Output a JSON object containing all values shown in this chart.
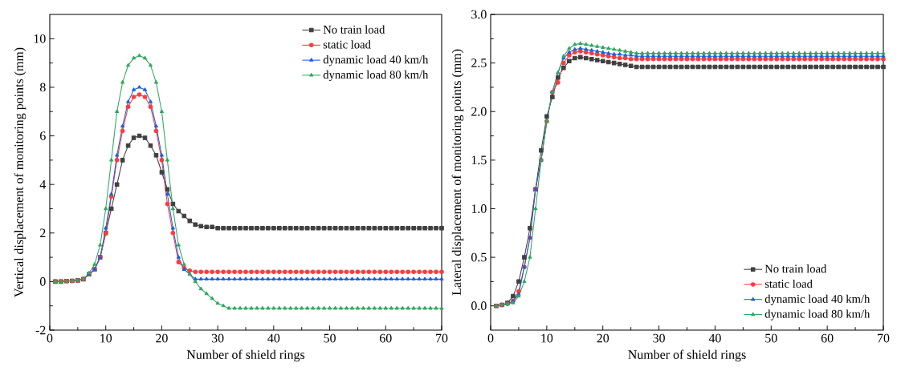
{
  "chart_data": [
    {
      "type": "line",
      "xlabel": "Number of shield rings",
      "ylabel": "Vertical displacement of monitoring points (mm)",
      "xlim": [
        0,
        70
      ],
      "ylim": [
        -2,
        11
      ],
      "xticks": [
        0,
        10,
        20,
        30,
        40,
        50,
        60,
        70
      ],
      "yticks": [
        -2,
        0,
        2,
        4,
        6,
        8,
        10
      ],
      "grid": false,
      "legend": "top right",
      "line_style": "solid",
      "x": [
        1,
        2,
        3,
        4,
        5,
        6,
        7,
        8,
        9,
        10,
        11,
        12,
        13,
        14,
        15,
        16,
        17,
        18,
        19,
        20,
        21,
        22,
        23,
        24,
        25,
        26,
        27,
        28,
        29,
        30,
        31,
        32,
        33,
        34,
        35,
        36,
        37,
        38,
        39,
        40,
        41,
        42,
        43,
        44,
        45,
        46,
        47,
        48,
        49,
        50,
        51,
        52,
        53,
        54,
        55,
        56,
        57,
        58,
        59,
        60,
        61,
        62,
        63,
        64,
        65,
        66,
        67,
        68,
        69,
        70
      ],
      "series": [
        {
          "name": "No train load",
          "color": "#404040",
          "marker": "square",
          "values": [
            0,
            0,
            0.02,
            0.03,
            0.05,
            0.1,
            0.3,
            0.5,
            1.0,
            2.0,
            3.0,
            4.0,
            5.0,
            5.6,
            5.92,
            6.0,
            5.92,
            5.6,
            5.2,
            4.5,
            3.8,
            3.2,
            2.9,
            2.7,
            2.5,
            2.35,
            2.28,
            2.25,
            2.25,
            2.2,
            2.2,
            2.2,
            2.2,
            2.2,
            2.2,
            2.2,
            2.2,
            2.2,
            2.2,
            2.2,
            2.2,
            2.2,
            2.2,
            2.2,
            2.2,
            2.2,
            2.2,
            2.2,
            2.2,
            2.2,
            2.2,
            2.2,
            2.2,
            2.2,
            2.2,
            2.2,
            2.2,
            2.2,
            2.2,
            2.2,
            2.2,
            2.2,
            2.2,
            2.2,
            2.2,
            2.2,
            2.2,
            2.2,
            2.2,
            2.2
          ]
        },
        {
          "name": "static load",
          "color": "#ff3b3b",
          "marker": "circle",
          "values": [
            0,
            0,
            0.02,
            0.03,
            0.05,
            0.1,
            0.3,
            0.5,
            1.0,
            2.0,
            3.5,
            5.0,
            6.2,
            7.2,
            7.6,
            7.7,
            7.6,
            7.2,
            6.2,
            5.0,
            3.2,
            2.0,
            0.8,
            0.55,
            0.45,
            0.4,
            0.4,
            0.4,
            0.4,
            0.4,
            0.4,
            0.4,
            0.4,
            0.4,
            0.4,
            0.4,
            0.4,
            0.4,
            0.4,
            0.4,
            0.4,
            0.4,
            0.4,
            0.4,
            0.4,
            0.4,
            0.4,
            0.4,
            0.4,
            0.4,
            0.4,
            0.4,
            0.4,
            0.4,
            0.4,
            0.4,
            0.4,
            0.4,
            0.4,
            0.4,
            0.4,
            0.4,
            0.4,
            0.4,
            0.4,
            0.4,
            0.4,
            0.4,
            0.4,
            0.4
          ]
        },
        {
          "name": "dynamic load 40 km/h",
          "color": "#1f5fe0",
          "marker": "triangle",
          "values": [
            null,
            null,
            null,
            null,
            0.05,
            0.1,
            0.3,
            0.5,
            1.0,
            2.2,
            3.6,
            5.2,
            6.4,
            7.4,
            7.9,
            8.0,
            7.9,
            7.4,
            6.4,
            5.2,
            3.6,
            2.2,
            1.0,
            0.5,
            0.3,
            0.1,
            0.1,
            0.1,
            0.1,
            0.1,
            0.1,
            0.1,
            0.1,
            0.1,
            0.1,
            0.1,
            0.1,
            0.1,
            0.1,
            0.1,
            0.1,
            0.1,
            0.1,
            0.1,
            0.1,
            0.1,
            0.1,
            0.1,
            0.1,
            0.1,
            0.1,
            0.1,
            0.1,
            0.1,
            0.1,
            0.1,
            0.1,
            0.1,
            0.1,
            0.1,
            0.1,
            0.1,
            0.1,
            0.1,
            0.1,
            0.1,
            0.1,
            0.1,
            0.1,
            0.1
          ]
        },
        {
          "name": "dynamic load 80 km/h",
          "color": "#2ea860",
          "marker": "triangle",
          "values": [
            0,
            0,
            0.02,
            0.03,
            0.05,
            0.1,
            0.35,
            0.7,
            1.5,
            3.0,
            5.0,
            7.0,
            8.2,
            8.9,
            9.2,
            9.3,
            9.2,
            8.9,
            8.2,
            7.0,
            5.0,
            3.0,
            1.5,
            0.7,
            0.3,
            0.0,
            -0.3,
            -0.5,
            -0.7,
            -0.9,
            -1.0,
            -1.1,
            -1.1,
            -1.1,
            -1.1,
            -1.1,
            -1.1,
            -1.1,
            -1.1,
            -1.1,
            -1.1,
            -1.1,
            -1.1,
            -1.1,
            -1.1,
            -1.1,
            -1.1,
            -1.1,
            -1.1,
            -1.1,
            -1.1,
            -1.1,
            -1.1,
            -1.1,
            -1.1,
            -1.1,
            -1.1,
            -1.1,
            -1.1,
            -1.1,
            -1.1,
            -1.1,
            -1.1,
            -1.1,
            -1.1,
            -1.1,
            -1.1,
            -1.1,
            -1.1,
            -1.1
          ]
        }
      ]
    },
    {
      "type": "line",
      "xlabel": "Number of shield rings",
      "ylabel": "Lateral displacement of monitoring points (mm)",
      "xlim": [
        0,
        70
      ],
      "ylim": [
        -0.25,
        3.0
      ],
      "xticks": [
        0,
        10,
        20,
        30,
        40,
        50,
        60,
        70
      ],
      "yticks": [
        {
          "value": 0,
          "label": "0.0"
        },
        {
          "value": 0.5,
          "label": "0.5"
        },
        {
          "value": 1,
          "label": "1.0"
        },
        {
          "value": 1.5,
          "label": "1.5"
        },
        {
          "value": 2,
          "label": "2.0"
        },
        {
          "value": 2.5,
          "label": "2.5"
        },
        {
          "value": 3,
          "label": "3.0"
        }
      ],
      "grid": false,
      "legend": "bottom right",
      "line_style": "solid",
      "x": [
        1,
        2,
        3,
        4,
        5,
        6,
        7,
        8,
        9,
        10,
        11,
        12,
        13,
        14,
        15,
        16,
        17,
        18,
        19,
        20,
        21,
        22,
        23,
        24,
        25,
        26,
        27,
        28,
        29,
        30,
        31,
        32,
        33,
        34,
        35,
        36,
        37,
        38,
        39,
        40,
        41,
        42,
        43,
        44,
        45,
        46,
        47,
        48,
        49,
        50,
        51,
        52,
        53,
        54,
        55,
        56,
        57,
        58,
        59,
        60,
        61,
        62,
        63,
        64,
        65,
        66,
        67,
        68,
        69,
        70
      ],
      "series": [
        {
          "name": "No train load",
          "color": "#404040",
          "marker": "square",
          "values": [
            0,
            0.01,
            0.03,
            0.1,
            0.25,
            0.5,
            0.8,
            1.2,
            1.6,
            1.95,
            2.15,
            2.35,
            2.45,
            2.52,
            2.55,
            2.56,
            2.55,
            2.54,
            2.53,
            2.52,
            2.51,
            2.5,
            2.49,
            2.48,
            2.47,
            2.46,
            2.46,
            2.46,
            2.46,
            2.46,
            2.46,
            2.46,
            2.46,
            2.46,
            2.46,
            2.46,
            2.46,
            2.46,
            2.46,
            2.46,
            2.46,
            2.46,
            2.46,
            2.46,
            2.46,
            2.46,
            2.46,
            2.46,
            2.46,
            2.46,
            2.46,
            2.46,
            2.46,
            2.46,
            2.46,
            2.46,
            2.46,
            2.46,
            2.46,
            2.46,
            2.46,
            2.46,
            2.46,
            2.46,
            2.46,
            2.46,
            2.46,
            2.46,
            2.46,
            2.46
          ]
        },
        {
          "name": "static load",
          "color": "#ff3b3b",
          "marker": "circle",
          "values": [
            0,
            0.01,
            0.02,
            0.05,
            0.15,
            0.4,
            0.7,
            1.2,
            1.5,
            1.9,
            2.2,
            2.3,
            2.5,
            2.58,
            2.61,
            2.62,
            2.61,
            2.6,
            2.59,
            2.58,
            2.57,
            2.56,
            2.55,
            2.55,
            2.54,
            2.54,
            2.54,
            2.54,
            2.54,
            2.54,
            2.54,
            2.54,
            2.54,
            2.54,
            2.54,
            2.54,
            2.54,
            2.54,
            2.54,
            2.54,
            2.54,
            2.54,
            2.54,
            2.54,
            2.54,
            2.54,
            2.54,
            2.54,
            2.54,
            2.54,
            2.54,
            2.54,
            2.54,
            2.54,
            2.54,
            2.54,
            2.54,
            2.54,
            2.54,
            2.54,
            2.54,
            2.54,
            2.54,
            2.54,
            2.54,
            2.54,
            2.54,
            2.54,
            2.54,
            2.54
          ]
        },
        {
          "name": "dynamic load 40 km/h",
          "color": "#1f5fe0",
          "marker": "triangle",
          "values": [
            0,
            0.01,
            0.02,
            0.05,
            0.12,
            0.4,
            0.7,
            1.2,
            1.5,
            1.9,
            2.2,
            2.4,
            2.55,
            2.61,
            2.64,
            2.65,
            2.64,
            2.63,
            2.62,
            2.61,
            2.6,
            2.59,
            2.59,
            2.58,
            2.58,
            2.57,
            2.57,
            2.57,
            2.57,
            2.57,
            2.57,
            2.57,
            2.57,
            2.57,
            2.57,
            2.57,
            2.57,
            2.57,
            2.57,
            2.57,
            2.57,
            2.57,
            2.57,
            2.57,
            2.57,
            2.57,
            2.57,
            2.57,
            2.57,
            2.57,
            2.57,
            2.57,
            2.57,
            2.57,
            2.57,
            2.57,
            2.57,
            2.57,
            2.57,
            2.57,
            2.57,
            2.57,
            2.57,
            2.57,
            2.57,
            2.57,
            2.57,
            2.57,
            2.57,
            2.57
          ]
        },
        {
          "name": "dynamic load 80 km/h",
          "color": "#2ea860",
          "marker": "triangle",
          "values": [
            0,
            0.01,
            0.02,
            0.03,
            0.1,
            0.25,
            0.5,
            1.0,
            1.5,
            1.9,
            2.2,
            2.4,
            2.57,
            2.65,
            2.69,
            2.7,
            2.69,
            2.68,
            2.67,
            2.66,
            2.65,
            2.64,
            2.63,
            2.62,
            2.61,
            2.6,
            2.6,
            2.6,
            2.6,
            2.6,
            2.6,
            2.6,
            2.6,
            2.6,
            2.6,
            2.6,
            2.6,
            2.6,
            2.6,
            2.6,
            2.6,
            2.6,
            2.6,
            2.6,
            2.6,
            2.6,
            2.6,
            2.6,
            2.6,
            2.6,
            2.6,
            2.6,
            2.6,
            2.6,
            2.6,
            2.6,
            2.6,
            2.6,
            2.6,
            2.6,
            2.6,
            2.6,
            2.6,
            2.6,
            2.6,
            2.6,
            2.6,
            2.6,
            2.6,
            2.6
          ]
        }
      ]
    }
  ]
}
